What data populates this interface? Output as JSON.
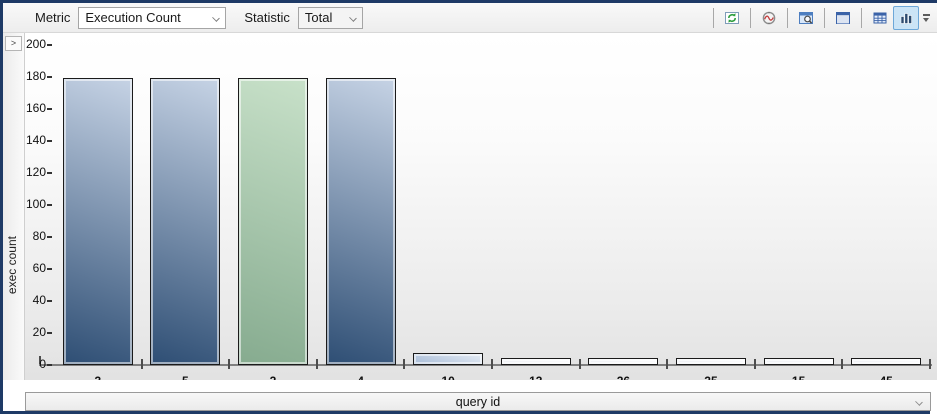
{
  "window": {
    "border_color": "#1e3a66"
  },
  "toolbar": {
    "metric_label": "Metric",
    "metric_value": "Execution Count",
    "statistic_label": "Statistic",
    "statistic_value": "Total",
    "selected_button": "bar-chart",
    "selected_button_bg": "#cbe4f6",
    "selected_button_border": "#6da7d8"
  },
  "left_panel": {
    "expander": ">",
    "axis_label": "exec count"
  },
  "bottom_panel": {
    "label": "query id"
  },
  "chart_data": {
    "type": "bar",
    "categories": [
      "3",
      "5",
      "2",
      "4",
      "10",
      "13",
      "26",
      "25",
      "15",
      "45"
    ],
    "values": [
      179,
      179,
      179,
      179,
      7,
      4,
      4,
      4,
      4,
      4
    ],
    "bar_styles": [
      "blue",
      "blue",
      "green",
      "blue",
      "lightblue",
      "white",
      "white",
      "white",
      "white",
      "white"
    ],
    "highlighted_category": "2",
    "xlabel": "query id",
    "ylabel": "exec count",
    "ylim": [
      0,
      200
    ],
    "ytick_interval": 20,
    "legend": false,
    "grid": false,
    "colors": {
      "blue_top": "#c6d3e5",
      "blue_bottom": "#2e4e74",
      "green_top": "#c8e1c9",
      "green_bottom": "#86ab8f",
      "lightblue_top": "#e4ebf4",
      "lightblue_bottom": "#a9bdd8",
      "white_top": "#fbfcfd",
      "white_bottom": "#eef0f4"
    }
  }
}
